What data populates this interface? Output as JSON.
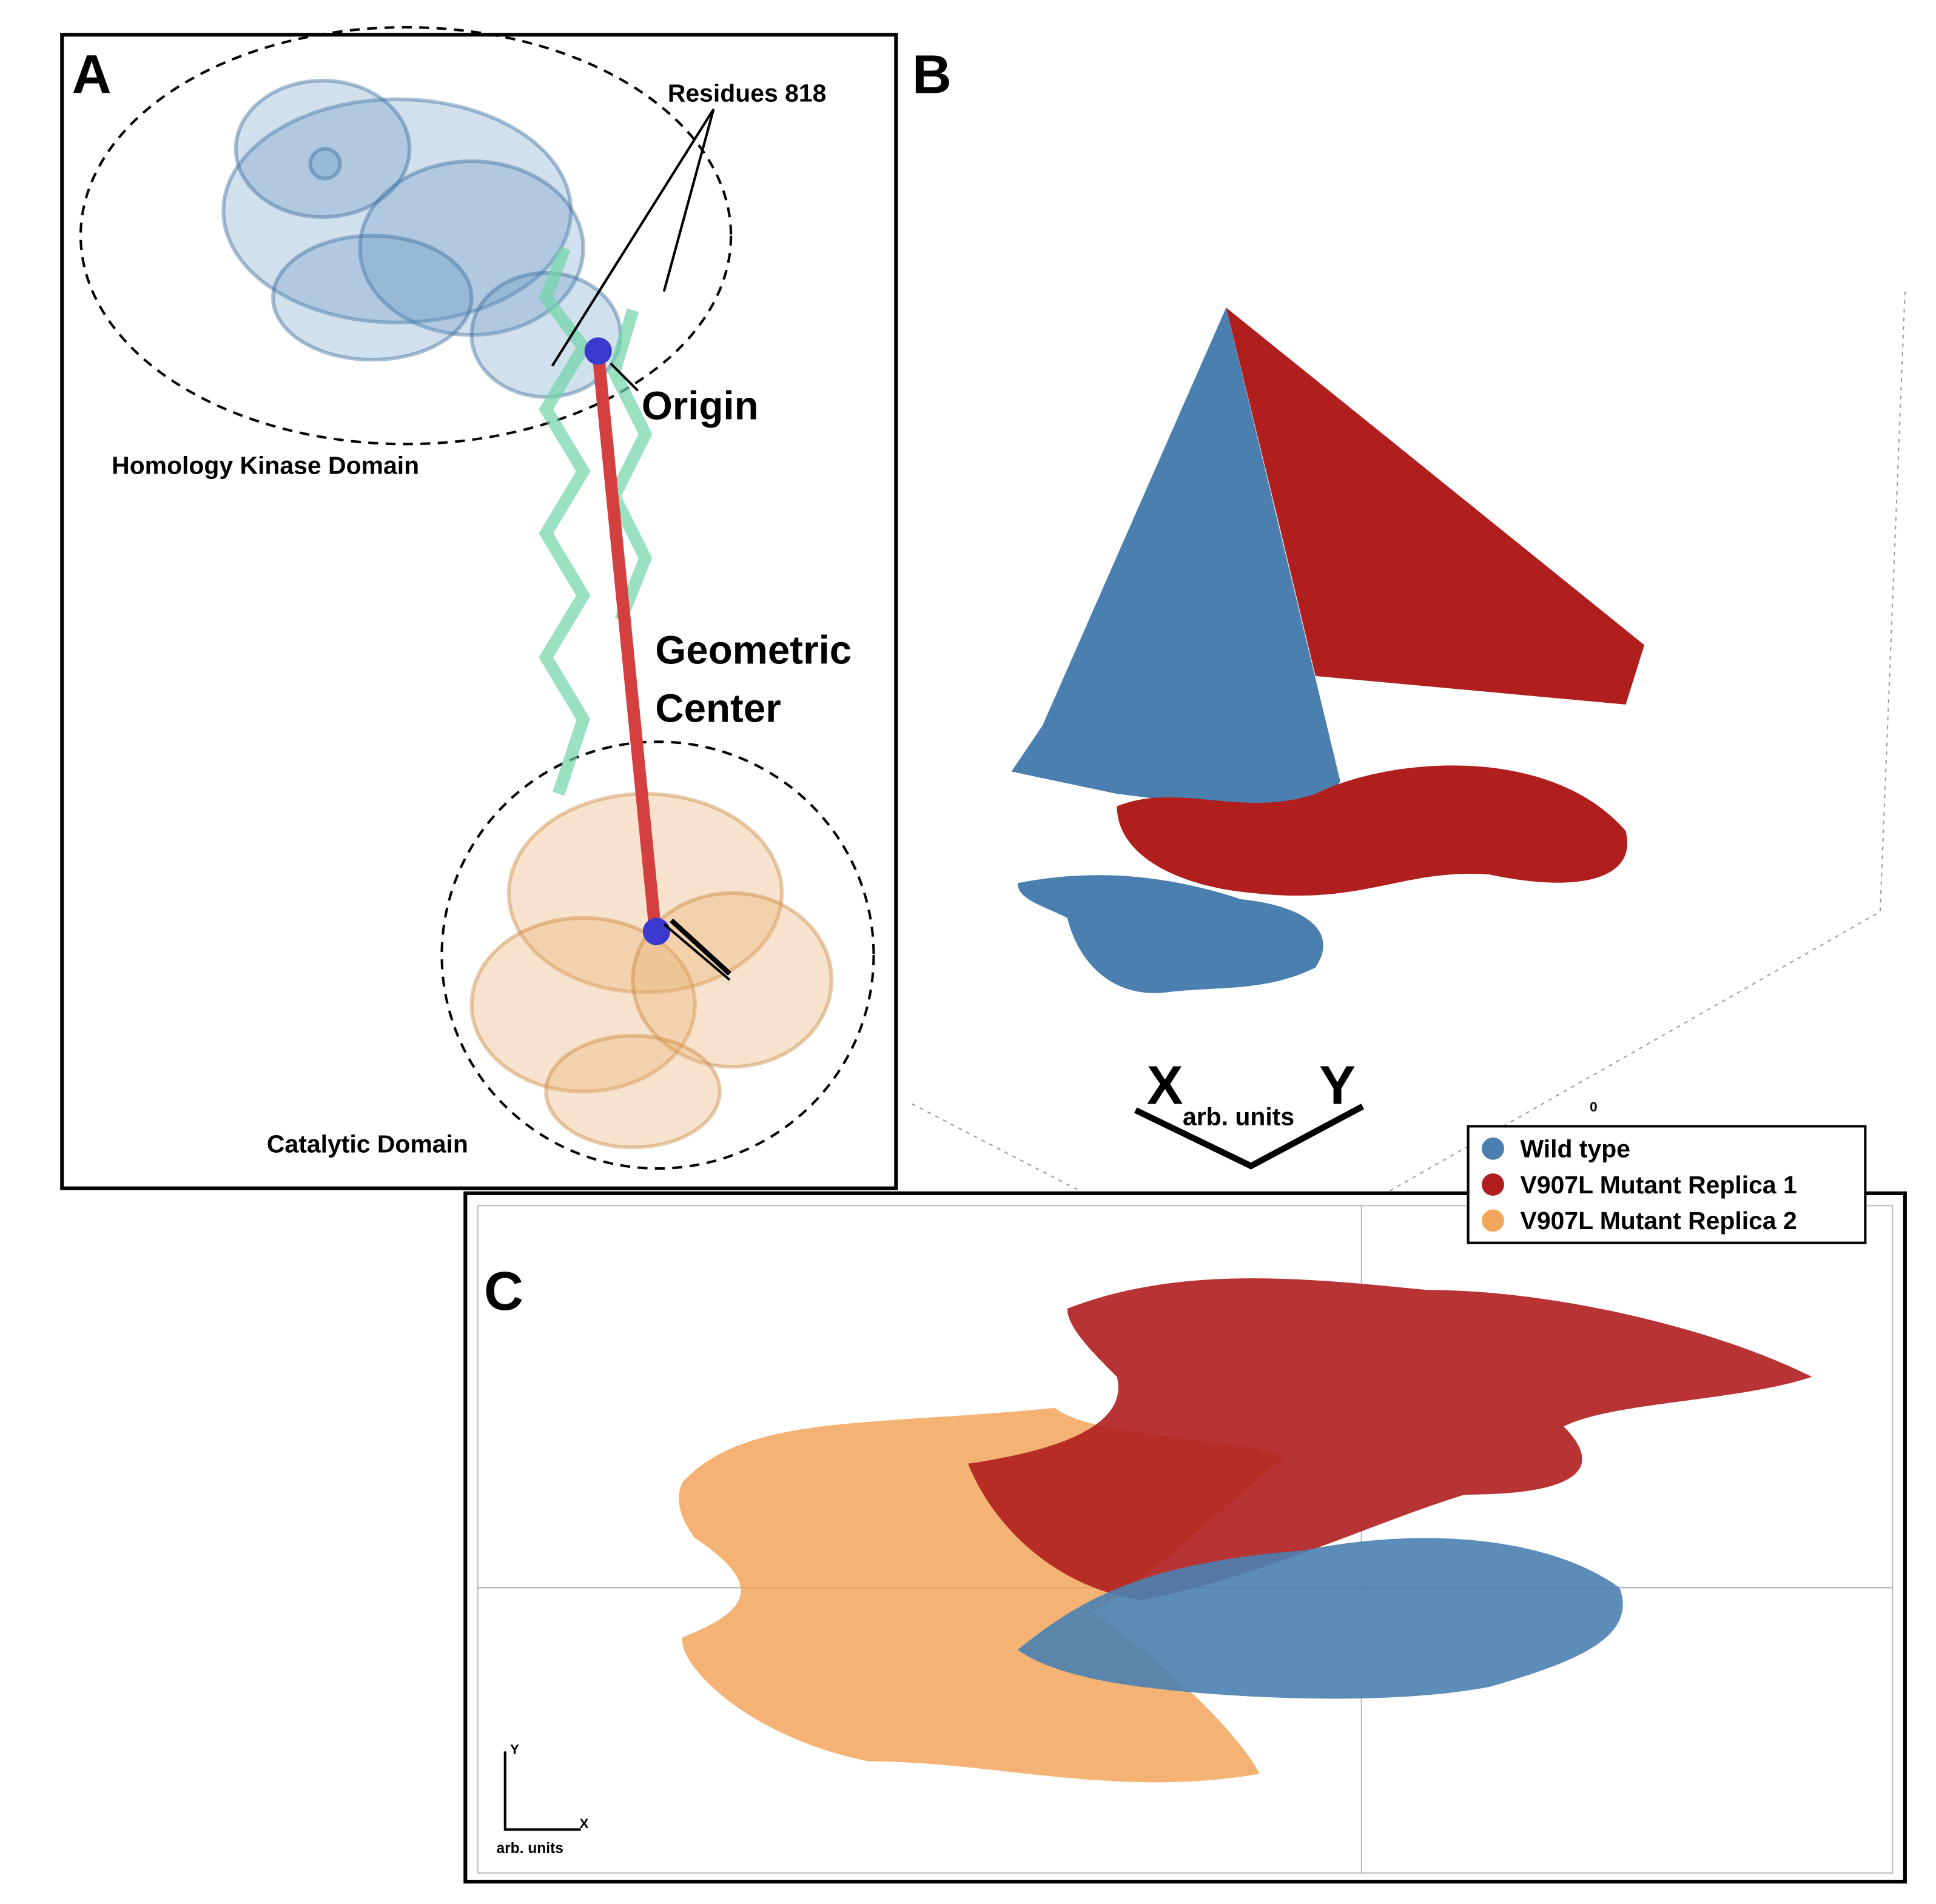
{
  "panel_a": {
    "label": "A",
    "residues": "Residues 818",
    "origin": "Origin",
    "geometric_center": [
      "Geometric",
      "Center"
    ],
    "kinase_domain": "Homology Kinase Domain",
    "catalytic_domain": "Catalytic Domain"
  },
  "panel_b": {
    "label": "B",
    "axis_zero": "0",
    "x_axis": "X",
    "y_axis": "Y",
    "units": "arb. units"
  },
  "panel_c": {
    "label": "C",
    "x_axis": "X",
    "y_axis": "Y",
    "units": "arb. units",
    "legend": [
      {
        "name": "Wild type",
        "color": "#4a7fb0"
      },
      {
        "name": "V907L Mutant Replica 1",
        "color": "#b01e1e"
      },
      {
        "name": "V907L Mutant Replica 2",
        "color": "#f2a65c"
      }
    ]
  }
}
